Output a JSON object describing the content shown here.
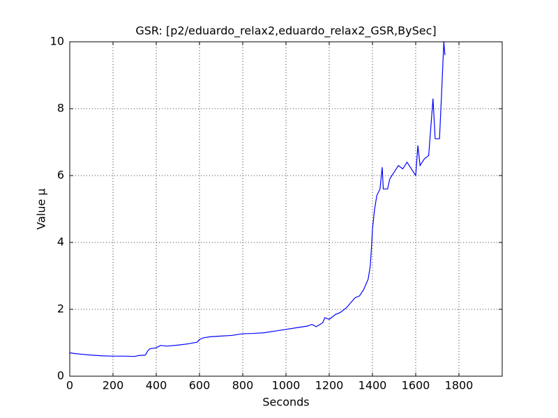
{
  "chart_data": {
    "type": "line",
    "title": "GSR: [p2/eduardo_relax2,eduardo_relax2_GSR,BySec]",
    "x_label": "Seconds",
    "y_label": "Value μ",
    "x": [
      0,
      20,
      50,
      100,
      150,
      200,
      250,
      300,
      320,
      350,
      360,
      370,
      400,
      420,
      450,
      500,
      550,
      590,
      600,
      620,
      650,
      700,
      750,
      800,
      850,
      900,
      950,
      1000,
      1050,
      1100,
      1120,
      1140,
      1170,
      1180,
      1200,
      1230,
      1250,
      1280,
      1300,
      1320,
      1340,
      1360,
      1380,
      1390,
      1395,
      1400,
      1410,
      1420,
      1435,
      1445,
      1450,
      1470,
      1480,
      1500,
      1520,
      1540,
      1560,
      1580,
      1600,
      1610,
      1620,
      1640,
      1660,
      1680,
      1690,
      1710,
      1720,
      1730,
      1735
    ],
    "series": [
      {
        "name": "GSR",
        "color": "#0000ff",
        "values": [
          0.7,
          0.68,
          0.66,
          0.63,
          0.61,
          0.6,
          0.6,
          0.59,
          0.62,
          0.63,
          0.75,
          0.82,
          0.85,
          0.92,
          0.9,
          0.93,
          0.97,
          1.02,
          1.1,
          1.15,
          1.18,
          1.2,
          1.22,
          1.27,
          1.28,
          1.3,
          1.35,
          1.4,
          1.45,
          1.5,
          1.55,
          1.48,
          1.6,
          1.75,
          1.7,
          1.85,
          1.9,
          2.05,
          2.2,
          2.35,
          2.4,
          2.6,
          2.9,
          3.3,
          3.8,
          4.4,
          5.0,
          5.4,
          5.6,
          6.25,
          5.6,
          5.6,
          5.9,
          6.1,
          6.3,
          6.2,
          6.4,
          6.2,
          6.0,
          6.9,
          6.3,
          6.5,
          6.6,
          8.3,
          7.1,
          7.1,
          8.5,
          10.0,
          9.6
        ]
      }
    ],
    "xlim": [
      0,
      2000
    ],
    "xticks": [
      0,
      200,
      400,
      600,
      800,
      1000,
      1200,
      1400,
      1600,
      1800
    ],
    "ylim": [
      0,
      10
    ],
    "yticks": [
      0,
      2,
      4,
      6,
      8,
      10
    ],
    "grid": true
  }
}
